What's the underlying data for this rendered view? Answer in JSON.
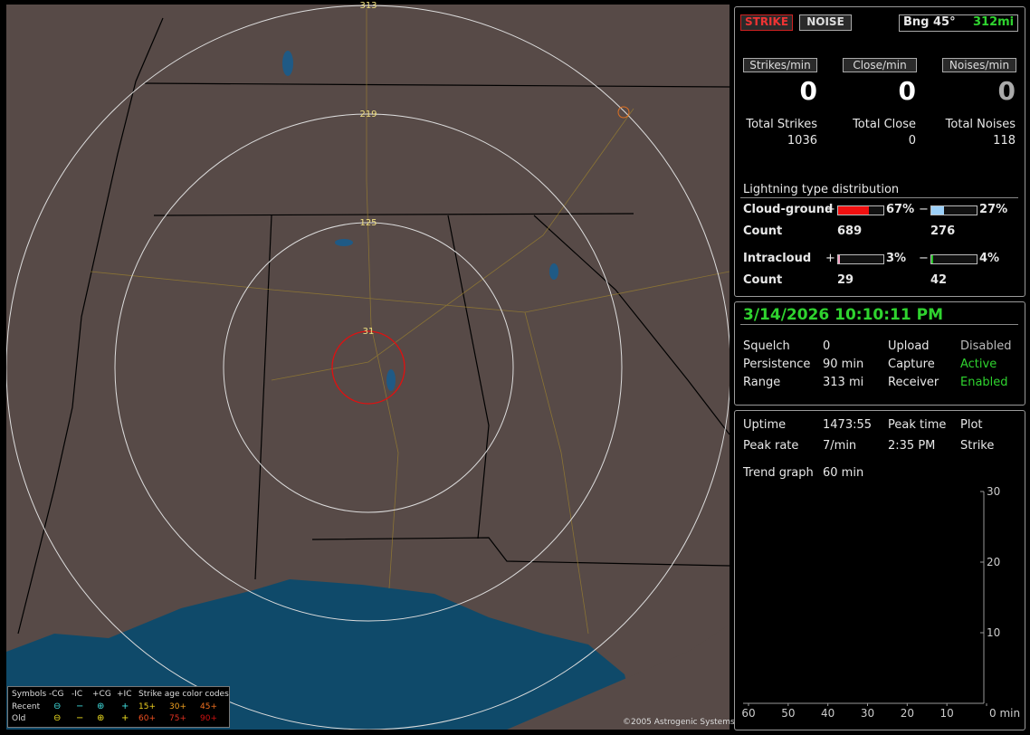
{
  "map": {
    "range_rings": [
      "313",
      "219",
      "125",
      "31"
    ],
    "legend": {
      "symbols_label": "Symbols",
      "columns": [
        "-CG",
        "-IC",
        "+CG",
        "+IC"
      ],
      "rows": [
        "Recent",
        "Old"
      ],
      "age_title": "Strike age color codes",
      "age_recent": [
        "15+",
        "30+",
        "45+"
      ],
      "age_old": [
        "60+",
        "75+",
        "90+"
      ]
    },
    "copyright": "©2005 Astrogenic Systems"
  },
  "status": {
    "strike_button": "STRIKE",
    "noise_button": "NOISE",
    "bearing": "Bng 45°",
    "range": "312mi",
    "rates": [
      {
        "label": "Strikes/min",
        "value": 0
      },
      {
        "label": "Close/min",
        "value": 0
      },
      {
        "label": "Noises/min",
        "value": 0
      }
    ],
    "totals": [
      {
        "label": "Total Strikes",
        "value": 1036
      },
      {
        "label": "Total Close",
        "value": 0
      },
      {
        "label": "Total Noises",
        "value": 118
      }
    ],
    "distribution": {
      "title": "Lightning type distribution",
      "rows": [
        {
          "name": "Cloud-ground",
          "plus_sign": "+",
          "plus": {
            "value": 67,
            "label": "67%"
          },
          "minus_sign": "−",
          "minus": {
            "value": 27,
            "label": "27%"
          },
          "count_label": "Count",
          "plus_count": 689,
          "minus_count": 276
        },
        {
          "name": "Intracloud",
          "plus_sign": "+",
          "plus": {
            "value": 3,
            "label": "3%"
          },
          "minus_sign": "−",
          "minus": {
            "value": 4,
            "label": "4%"
          },
          "count_label": "Count",
          "plus_count": 29,
          "minus_count": 42
        }
      ]
    }
  },
  "info": {
    "datetime": "3/14/2026 10:10:11 PM",
    "rows": [
      [
        "Squelch",
        "0",
        "Upload",
        "Disabled"
      ],
      [
        "Persistence",
        "90 min",
        "Capture",
        "Active"
      ],
      [
        "Range",
        "313 mi",
        "Receiver",
        "Enabled"
      ]
    ]
  },
  "stats": {
    "rows": [
      [
        "Uptime",
        "1473:55",
        "Peak time",
        "Plot"
      ],
      [
        "Peak rate",
        "7/min",
        "2:35 PM",
        "Strike"
      ],
      [
        "Trend graph",
        "60 min"
      ]
    ],
    "trend": {
      "ylim": [
        0,
        30
      ],
      "yticks": [
        30,
        20,
        10
      ],
      "xlim": [
        60,
        0
      ],
      "xticks": [
        60,
        50,
        40,
        30,
        20,
        10,
        {
          "value": 0,
          "label": "0 min"
        }
      ]
    }
  }
}
